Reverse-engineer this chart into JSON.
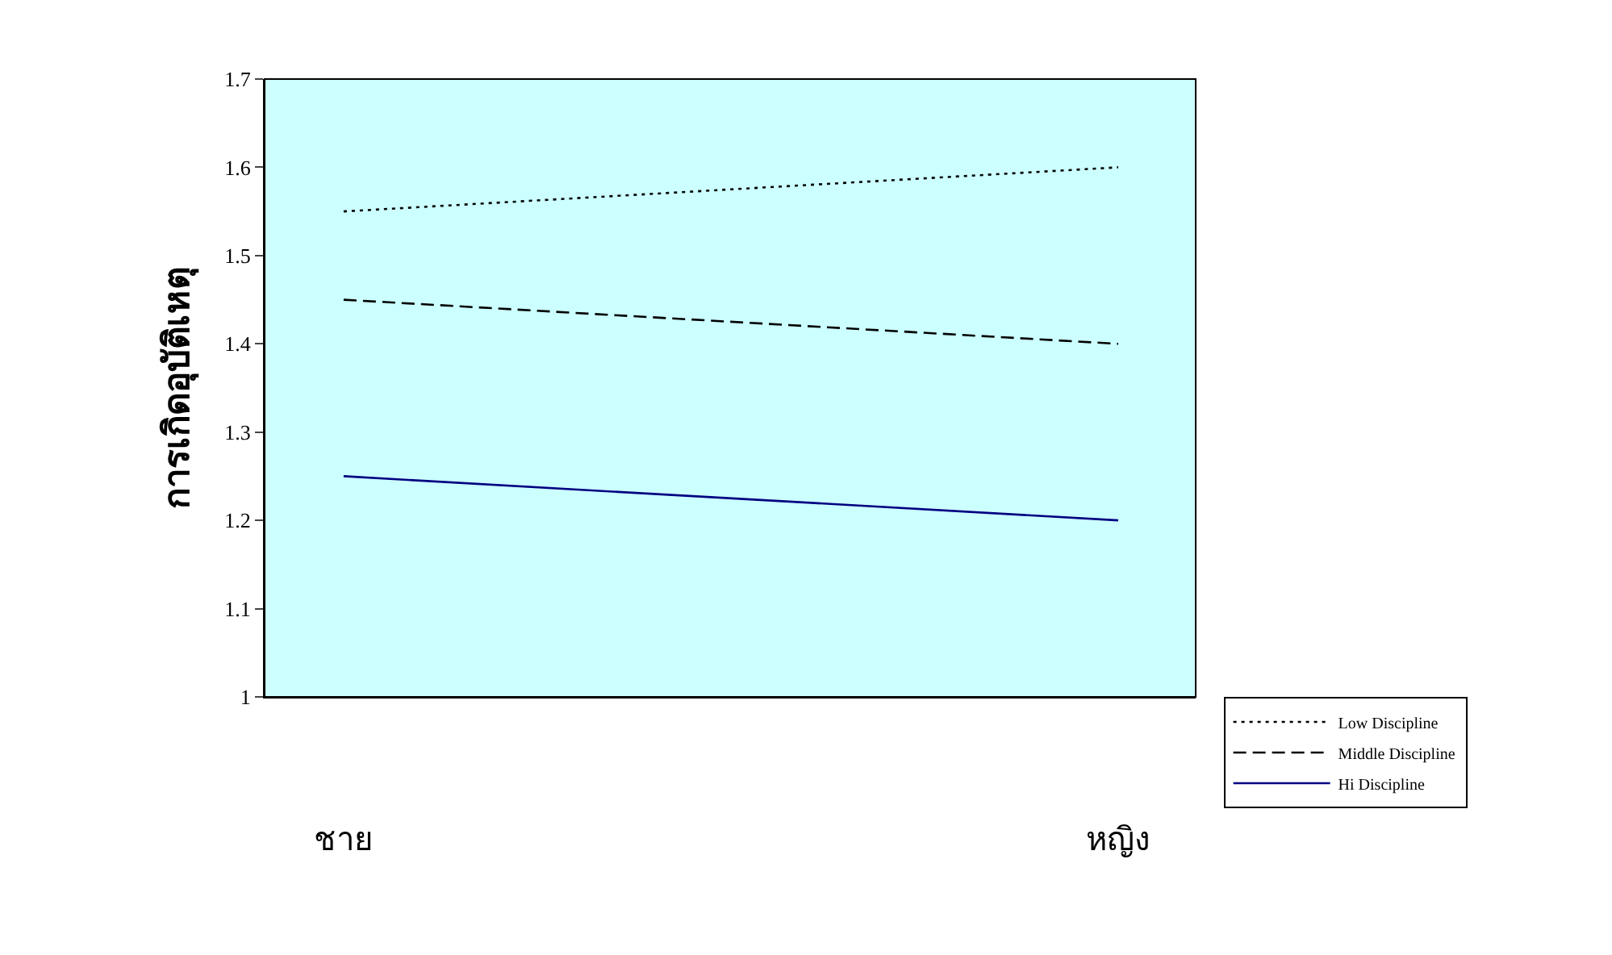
{
  "chart_data": {
    "type": "line",
    "ylabel": "การเกิดอุบัติเหตุ",
    "categories": [
      "ชาย",
      "หญิง"
    ],
    "series": [
      {
        "name": "Low Discipline",
        "color": "#000000",
        "line_style": "dotted",
        "values": [
          1.55,
          1.6
        ]
      },
      {
        "name": "Middle Discipline",
        "color": "#000000",
        "line_style": "dashed",
        "values": [
          1.45,
          1.4
        ]
      },
      {
        "name": "Hi Discipline",
        "color": "#000080",
        "line_style": "solid",
        "values": [
          1.25,
          1.2
        ]
      }
    ],
    "ylim": [
      1,
      1.7
    ],
    "yticks": [
      1,
      1.1,
      1.2,
      1.3,
      1.4,
      1.5,
      1.6,
      1.7
    ],
    "grid": false,
    "legend": "bottom right",
    "marker": "none"
  }
}
